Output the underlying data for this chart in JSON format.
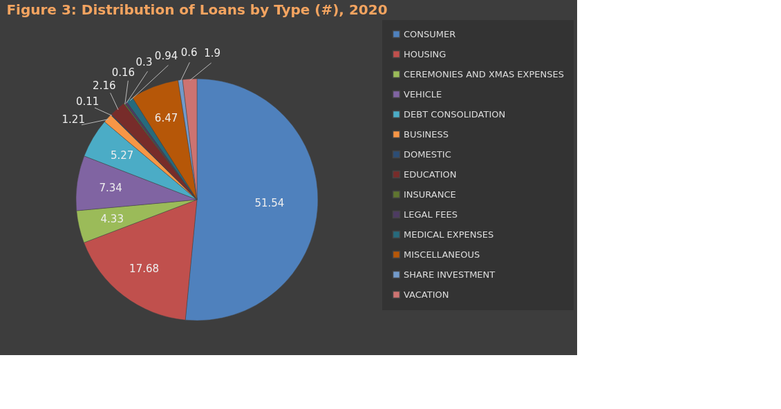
{
  "chart_data": {
    "type": "pie",
    "title": "Figure 3:  Distribution of Loans by Type (#), 2020",
    "categories": [
      "CONSUMER",
      "HOUSING",
      "CEREMONIES AND XMAS EXPENSES",
      "VEHICLE",
      "DEBT CONSOLIDATION",
      "BUSINESS",
      "DOMESTIC",
      "EDUCATION",
      "INSURANCE",
      "LEGAL FEES",
      "MEDICAL EXPENSES",
      "MISCELLANEOUS",
      "SHARE INVESTMENT",
      "VACATION"
    ],
    "values": [
      51.54,
      17.68,
      4.33,
      7.34,
      5.27,
      1.21,
      0.11,
      2.16,
      0.16,
      0.3,
      0.94,
      6.47,
      0.6,
      1.9
    ],
    "colors": [
      "#4f81bd",
      "#c0504d",
      "#9bbb59",
      "#8064a2",
      "#4bacc6",
      "#f79646",
      "#2c4d75",
      "#772c2a",
      "#5f7530",
      "#4d3b62",
      "#276a7c",
      "#b65708",
      "#729aca",
      "#cd7371"
    ],
    "data_labels": true,
    "legend": "right"
  }
}
